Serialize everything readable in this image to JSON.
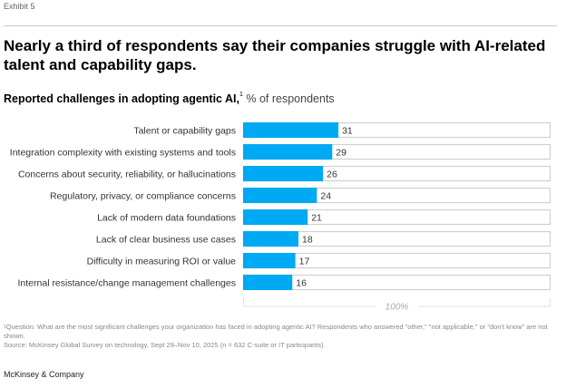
{
  "exhibit_label": "Exhibit 5",
  "headline": "Nearly a third of respondents say their companies struggle with AI-related talent and capability gaps.",
  "subtitle": {
    "bold": "Reported challenges in adopting agentic AI,",
    "footnote_marker": "1",
    "unit": " % of respondents"
  },
  "chart_data": {
    "type": "bar",
    "orientation": "horizontal",
    "title": "Reported challenges in adopting agentic AI, % of respondents",
    "categories": [
      "Talent or capability gaps",
      "Integration complexity with existing systems and tools",
      "Concerns about security, reliability, or hallucinations",
      "Regulatory, privacy, or compliance concerns",
      "Lack of modern data foundations",
      "Lack of clear business use cases",
      "Difficulty in measuring ROI or value",
      "Internal resistance/change management challenges"
    ],
    "values": [
      31,
      29,
      26,
      24,
      21,
      18,
      17,
      16
    ],
    "xlim": [
      0,
      100
    ],
    "scale_label": "100%",
    "xlabel": "",
    "ylabel": "",
    "grid": false,
    "legend": "none",
    "bar_color": "#00a9f4",
    "track_border_color": "#d0d0d0"
  },
  "footnotes": {
    "question": "Question: What are the most significant challenges your organization has faced in adopting agentic AI? Respondents who answered \"other,\" \"not applicable,\" or \"don't know\" are not shown.",
    "question_marker": "1",
    "source": "Source: McKinsey Global Survey on technology, Sept 29–Nov 10, 2025 (n = 632 C-suite or IT participants)"
  },
  "brand": "McKinsey & Company"
}
